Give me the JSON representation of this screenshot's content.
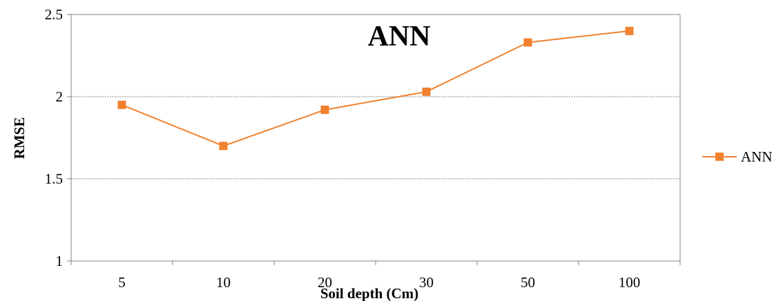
{
  "chart_data": {
    "type": "line",
    "title": "ANN",
    "xlabel": "Soil depth (Cm)",
    "ylabel": "RMSE",
    "categories": [
      "5",
      "10",
      "20",
      "30",
      "50",
      "100"
    ],
    "series": [
      {
        "name": "ANN",
        "values": [
          1.95,
          1.7,
          1.92,
          2.03,
          2.33,
          2.4
        ]
      }
    ],
    "ylim": [
      1,
      2.5
    ],
    "yticks": [
      "1",
      "1.5",
      "2",
      "2.5"
    ],
    "gridlines": [
      1.5,
      2.0
    ],
    "grid": true,
    "legend_position": "right",
    "series_color": "#f0812e",
    "axis_color": "#808080",
    "gridline_color": "#808080"
  }
}
